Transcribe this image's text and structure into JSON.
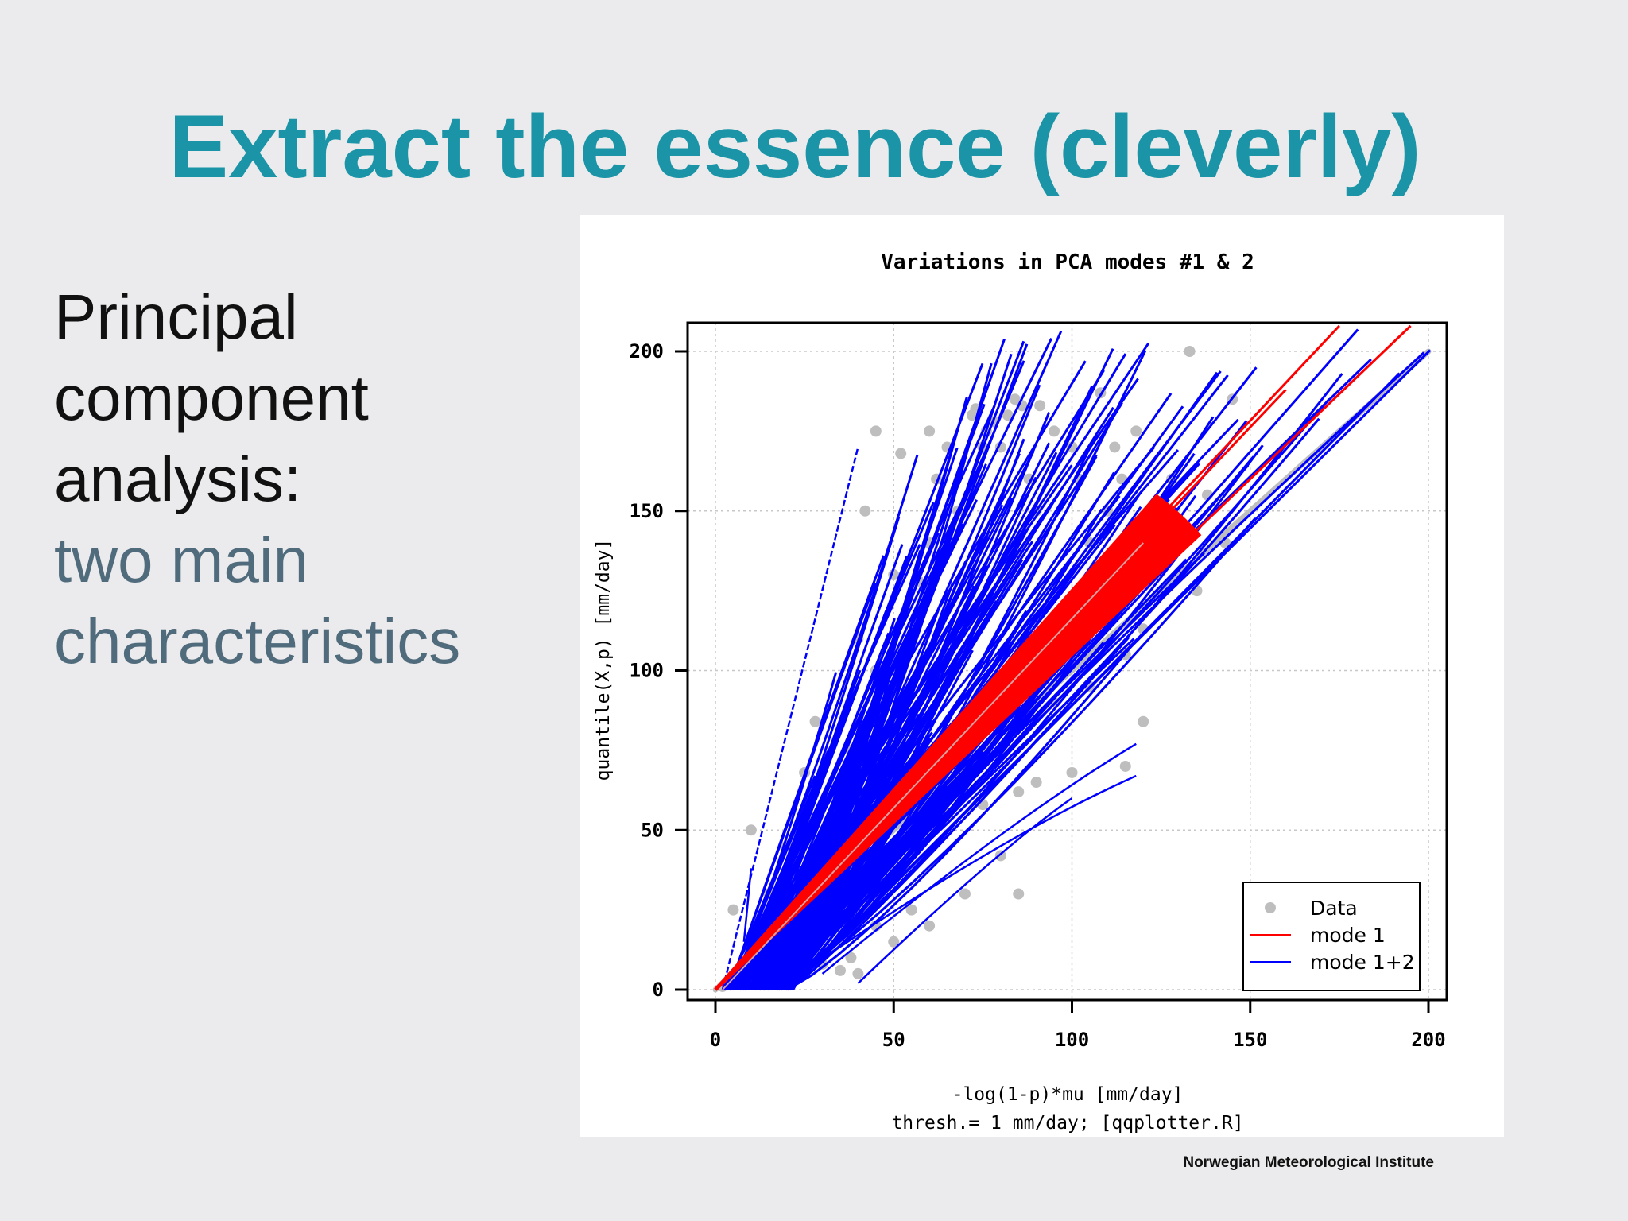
{
  "slide": {
    "title": "Extract the essence (cleverly)",
    "bullet_lines_dark": [
      "Principal",
      "component",
      "analysis:"
    ],
    "bullet_lines_muted": [
      "two main",
      "characteristics"
    ],
    "footer": "Norwegian Meteorological Institute"
  },
  "colors": {
    "title": "#1a94a6",
    "muted_text": "#4f6b7c",
    "data": "#bebebe",
    "mode1": "#ff0000",
    "mode12": "#0000ff"
  },
  "chart_data": {
    "type": "scatter",
    "title": "Variations in PCA modes #1 & 2",
    "xlabel": "-log(1-p)*mu [mm/day]",
    "xlabel2": "thresh.=  1 mm/day;  [qqplotter.R]",
    "ylabel": "quantile(X,p) [mm/day]",
    "xlim": [
      -8,
      208
    ],
    "ylim": [
      -8,
      208
    ],
    "x_ticks": [
      0,
      50,
      100,
      150,
      200
    ],
    "y_ticks": [
      0,
      50,
      100,
      150,
      200
    ],
    "x_tick_labels": [
      "0",
      "50",
      "100",
      "150",
      "200"
    ],
    "y_tick_labels": [
      "0",
      "50",
      "100",
      "150",
      "200"
    ],
    "grid": true,
    "legend_position": "bottom-right",
    "legend": [
      "Data",
      "mode 1",
      "mode 1+2"
    ],
    "data_reference_line": {
      "x": [
        0,
        200
      ],
      "y": [
        0,
        200
      ]
    },
    "data_points": [
      [
        10,
        50
      ],
      [
        5,
        25
      ],
      [
        28,
        84
      ],
      [
        25,
        68
      ],
      [
        15,
        30
      ],
      [
        20,
        45
      ],
      [
        22,
        10
      ],
      [
        25,
        5
      ],
      [
        30,
        40
      ],
      [
        35,
        60
      ],
      [
        38,
        75
      ],
      [
        40,
        110
      ],
      [
        45,
        100
      ],
      [
        48,
        80
      ],
      [
        50,
        130
      ],
      [
        55,
        110
      ],
      [
        57,
        128
      ],
      [
        60,
        140
      ],
      [
        60,
        20
      ],
      [
        62,
        160
      ],
      [
        65,
        170
      ],
      [
        70,
        30
      ],
      [
        72,
        180
      ],
      [
        73,
        182
      ],
      [
        75,
        170
      ],
      [
        76,
        175
      ],
      [
        78,
        178
      ],
      [
        80,
        170
      ],
      [
        82,
        180
      ],
      [
        84,
        185
      ],
      [
        86,
        183
      ],
      [
        88,
        160
      ],
      [
        90,
        150
      ],
      [
        91,
        183
      ],
      [
        95,
        175
      ],
      [
        100,
        170
      ],
      [
        102,
        160
      ],
      [
        105,
        140
      ],
      [
        108,
        187
      ],
      [
        110,
        150
      ],
      [
        112,
        170
      ],
      [
        114,
        160
      ],
      [
        118,
        175
      ],
      [
        120,
        113
      ],
      [
        120,
        84
      ],
      [
        115,
        70
      ],
      [
        100,
        68
      ],
      [
        90,
        65
      ],
      [
        85,
        62
      ],
      [
        75,
        58
      ],
      [
        65,
        55
      ],
      [
        60,
        60
      ],
      [
        55,
        25
      ],
      [
        45,
        20
      ],
      [
        50,
        15
      ],
      [
        38,
        10
      ],
      [
        30,
        8
      ],
      [
        40,
        5
      ],
      [
        42,
        150
      ],
      [
        35,
        6
      ],
      [
        18,
        6
      ],
      [
        12,
        4
      ],
      [
        8,
        3
      ],
      [
        4,
        2
      ],
      [
        2,
        1
      ],
      [
        80,
        42
      ],
      [
        85,
        30
      ],
      [
        95,
        90
      ],
      [
        105,
        95
      ],
      [
        115,
        105
      ],
      [
        75,
        120
      ],
      [
        68,
        150
      ],
      [
        52,
        168
      ],
      [
        45,
        175
      ],
      [
        60,
        175
      ],
      [
        130,
        130
      ],
      [
        135,
        125
      ],
      [
        128,
        160
      ],
      [
        133,
        200
      ],
      [
        145,
        185
      ],
      [
        143,
        140
      ],
      [
        138,
        155
      ],
      [
        125,
        150
      ],
      [
        122,
        145
      ]
    ],
    "mode1_curves": {
      "count": 60,
      "x_range": [
        0,
        136
      ],
      "slope_range": [
        1.05,
        1.25
      ],
      "outer_lines": [
        {
          "x": [
            0,
            160
          ],
          "y": [
            0,
            188
          ]
        },
        {
          "x": [
            0,
            175
          ],
          "y": [
            0,
            208
          ]
        },
        {
          "x": [
            0,
            195
          ],
          "y": [
            0,
            208
          ]
        }
      ]
    },
    "mode12_curves": {
      "count": 200,
      "slope_range": [
        1.1,
        3.5
      ],
      "upper_end_y": 210,
      "notable_curves": [
        {
          "x": [
            2,
            40
          ],
          "y": [
            0,
            170
          ]
        },
        {
          "x": [
            8,
            10
          ],
          "y": [
            15,
            38
          ]
        },
        {
          "x": [
            20,
            118
          ],
          "y": [
            2,
            67
          ]
        },
        {
          "x": [
            30,
            118
          ],
          "y": [
            5,
            77
          ]
        },
        {
          "x": [
            40,
            100
          ],
          "y": [
            2,
            60
          ]
        }
      ]
    }
  }
}
